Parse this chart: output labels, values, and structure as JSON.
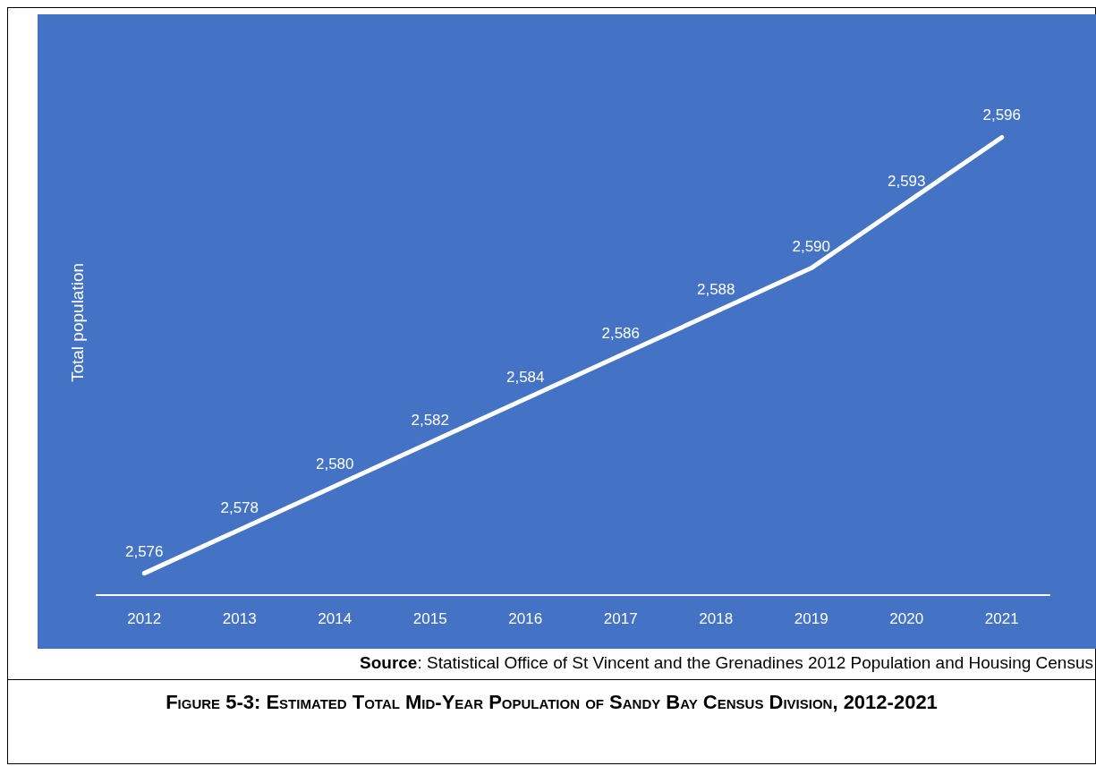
{
  "chart_data": {
    "type": "line",
    "title": "Figure 5-3: Estimated Total Mid-Year Population of Sandy Bay Census Division, 2012-2021",
    "ylabel": "Total population",
    "annotations": [
      "Source: Statistical Office of St Vincent and the Grenadines 2012 Population and Housing Census"
    ],
    "categories": [
      "2012",
      "2013",
      "2014",
      "2015",
      "2016",
      "2017",
      "2018",
      "2019",
      "2020",
      "2021"
    ],
    "series": [
      {
        "color": "#ffffff",
        "values": [
          2576,
          2578,
          2580,
          2582,
          2584,
          2586,
          2588,
          2590,
          2593,
          2596
        ],
        "value_labels": [
          "2,576",
          "2,578",
          "2,580",
          "2,582",
          "2,584",
          "2,586",
          "2,588",
          "2,590",
          "2,593",
          "2,596"
        ]
      }
    ],
    "grid": false,
    "marker": "none",
    "line_style": "solid"
  }
}
